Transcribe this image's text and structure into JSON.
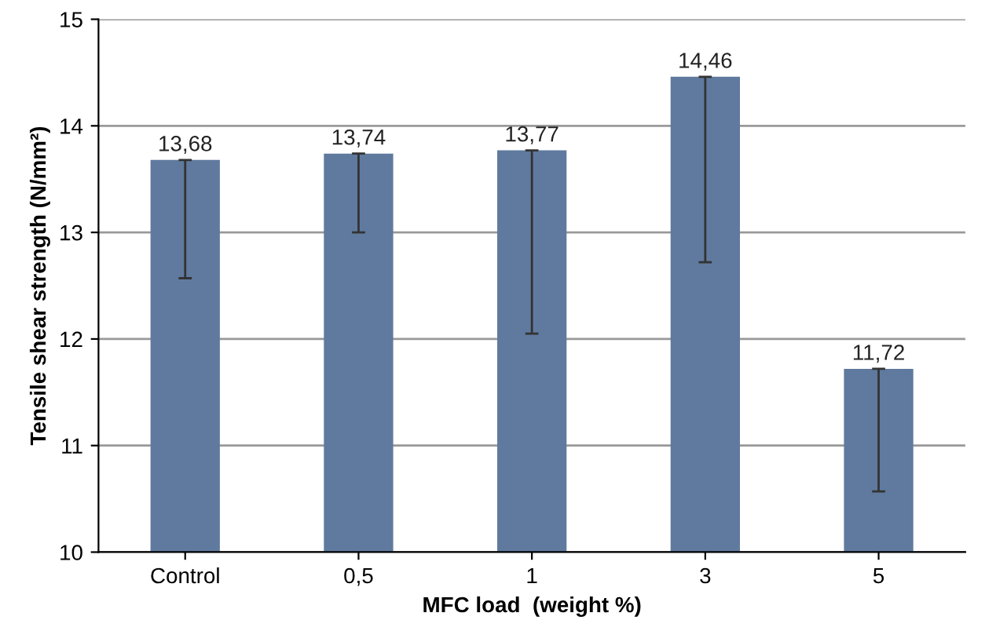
{
  "chart_data": {
    "type": "bar",
    "categories": [
      "Control",
      "0,5",
      "1",
      "3",
      "5"
    ],
    "values": [
      13.68,
      13.74,
      13.77,
      14.46,
      11.72
    ],
    "value_labels": [
      "13,68",
      "13,74",
      "13,77",
      "14,46",
      "11,72"
    ],
    "errors": [
      [
        12.57,
        13.68
      ],
      [
        13.0,
        13.74
      ],
      [
        12.05,
        13.77
      ],
      [
        12.72,
        14.46
      ],
      [
        10.57,
        11.72
      ]
    ],
    "color": "#5f7a9e",
    "xlabel": "MFC load  (weight %)",
    "ylabel": "Tensile shear strength (N/mm²)",
    "ylim": [
      10,
      15
    ],
    "yticks": [
      10,
      11,
      12,
      13,
      14,
      15
    ],
    "grid": "y"
  }
}
